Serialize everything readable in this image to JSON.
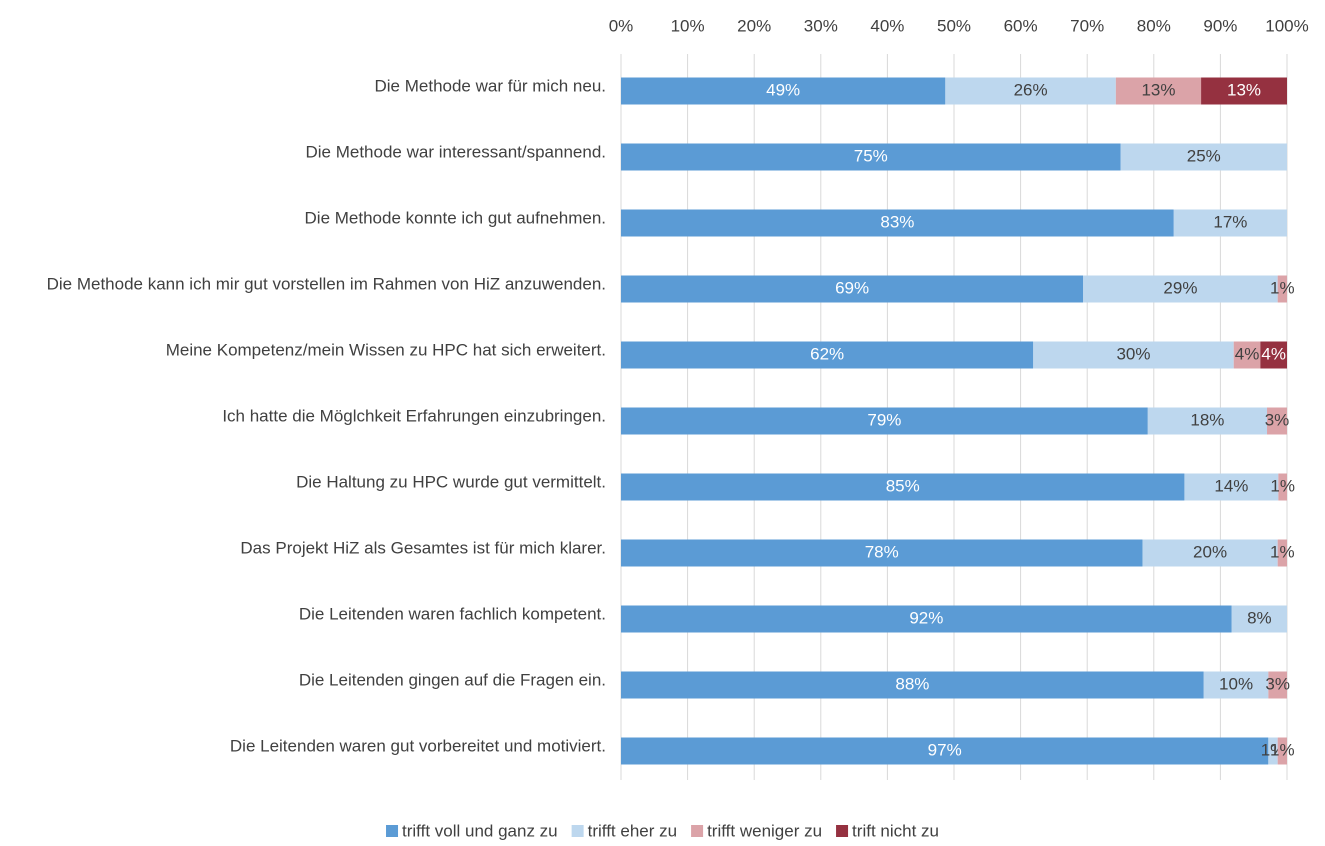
{
  "chart_data": {
    "type": "stacked_bar_horizontal",
    "categories": [
      "Die Methode war für mich neu.",
      "Die Methode war interessant/spannend.",
      "Die Methode konnte ich gut aufnehmen.",
      "Die Methode kann ich mir gut vorstellen im Rahmen von HiZ anzuwenden.",
      "Meine Kompetenz/mein Wissen zu HPC hat sich erweitert.",
      "Ich hatte die Möglchkeit Erfahrungen einzubringen.",
      "Die Haltung zu HPC wurde gut vermittelt.",
      "Das Projekt HiZ als Gesamtes ist für mich klarer.",
      "Die Leitenden waren fachlich kompetent.",
      "Die Leitenden gingen auf die Fragen ein.",
      "Die Leitenden waren gut vorbereitet und motiviert."
    ],
    "series": [
      {
        "name": "trifft voll und ganz zu",
        "color": "#5b9bd5",
        "values": [
          48.7,
          75,
          83,
          69.4,
          61.9,
          79.1,
          84.6,
          78.3,
          91.7,
          87.5,
          97.2
        ],
        "value_labels": [
          "49%",
          "75%",
          "83%",
          "69%",
          "62%",
          "79%",
          "85%",
          "78%",
          "92%",
          "88%",
          "97%"
        ]
      },
      {
        "name": "trifft eher zu",
        "color": "#bdd7ee",
        "values": [
          25.6,
          25,
          17,
          29.2,
          30.1,
          17.9,
          14.1,
          20.3,
          8.3,
          9.7,
          1.4
        ],
        "value_labels": [
          "26%",
          "25%",
          "17%",
          "29%",
          "30%",
          "18%",
          "14%",
          "20%",
          "8%",
          "10%",
          "1%"
        ]
      },
      {
        "name": "trifft weniger zu",
        "color": "#dba3a8",
        "values": [
          12.8,
          null,
          null,
          1.4,
          4.0,
          3.0,
          1.3,
          1.4,
          null,
          2.8,
          1.4
        ],
        "value_labels": [
          "13%",
          null,
          null,
          "1%",
          "4%",
          "3%",
          "1%",
          "1%",
          null,
          "3%",
          "1%"
        ]
      },
      {
        "name": "trift nicht zu",
        "color": "#953140",
        "values": [
          12.9,
          null,
          null,
          null,
          4.0,
          null,
          null,
          null,
          null,
          null,
          null
        ],
        "value_labels": [
          "13%",
          null,
          null,
          null,
          "4%",
          null,
          null,
          null,
          null,
          null,
          null
        ]
      }
    ],
    "xlim": [
      0,
      100
    ],
    "xticks": [
      {
        "value": 0,
        "label": "0%"
      },
      {
        "value": 10,
        "label": "10%"
      },
      {
        "value": 20,
        "label": "20%"
      },
      {
        "value": 30,
        "label": "30%"
      },
      {
        "value": 40,
        "label": "40%"
      },
      {
        "value": 50,
        "label": "50%"
      },
      {
        "value": 60,
        "label": "60%"
      },
      {
        "value": 70,
        "label": "70%"
      },
      {
        "value": 80,
        "label": "80%"
      },
      {
        "value": 90,
        "label": "90%"
      },
      {
        "value": 100,
        "label": "100%"
      }
    ],
    "grid": true,
    "legend": "bottom"
  }
}
